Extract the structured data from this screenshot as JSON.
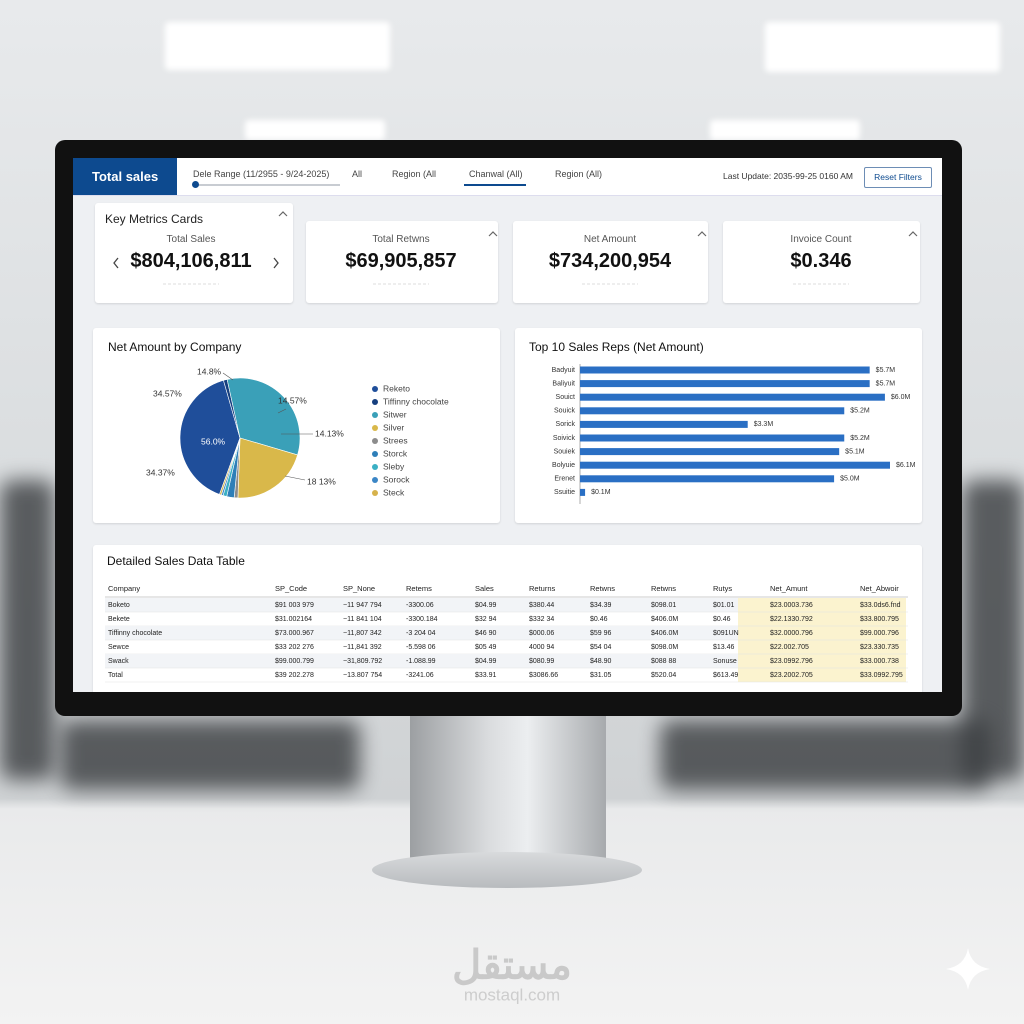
{
  "header": {
    "title": "Total sales",
    "filters": [
      "Dele Range (11/2955 - 9/24-2025)",
      "All",
      "Region (All",
      "Chanwal (All)",
      "Region (All)"
    ],
    "last_update": "Last Update: 2035-99-25 0160 AM",
    "reset_button": "Reset Filters"
  },
  "metrics": {
    "title": "Key Metrics Cards",
    "cards": [
      {
        "label": "Total Sales",
        "value": "$804,106,811"
      },
      {
        "label": "Total Retwns",
        "value": "$69,905,857"
      },
      {
        "label": "Net Amount",
        "value": "$734,200,954"
      },
      {
        "label": "Invoice Count",
        "value": "$0.346"
      }
    ]
  },
  "chart_data": [
    {
      "type": "pie",
      "title": "Net Amount by Company",
      "categories": [
        "Reketo",
        "Tiffinny chocolate",
        "Sitwer",
        "Silver",
        "Strees",
        "Storck",
        "Sleby",
        "Sorock",
        "Steck"
      ],
      "values": [
        40,
        1,
        33,
        21,
        1,
        2,
        1,
        0.5,
        0.5
      ],
      "colors": [
        "#1f4e9a",
        "#163f7f",
        "#3aa0b8",
        "#d9b84a",
        "#8c8c8c",
        "#2e7fb8",
        "#3bb0c4",
        "#3b86c6",
        "#d6b24c"
      ],
      "annotations": [
        "14.8%",
        "14.57%",
        "14.13%",
        "18 13%",
        "34.57%",
        "34.37%",
        "56.0%"
      ]
    },
    {
      "type": "bar",
      "orientation": "horizontal",
      "title": "Top 10 Sales Reps (Net Amount)",
      "categories": [
        "Badyuit",
        "Baliyuit",
        "Souict",
        "Souick",
        "Sorick",
        "Soivick",
        "Souiek",
        "Bolyuie",
        "Erenet",
        "Ssuitie"
      ],
      "values": [
        5.7,
        5.7,
        6.0,
        5.2,
        3.3,
        5.2,
        5.1,
        6.1,
        5.0,
        0.1
      ],
      "value_labels": [
        "$5.7M",
        "$5.7M",
        "$6.0M",
        "$5.2M",
        "$3.3M",
        "$5.2M",
        "$5.1M",
        "$6.1M",
        "$5.0M",
        "$0.1M"
      ],
      "color": "#2a6fc4"
    }
  ],
  "table": {
    "title": "Detailed Sales Data Table",
    "columns": [
      "Company",
      "SP_Code",
      "SP_None",
      "Retems",
      "Sales",
      "Returns",
      "Retwns",
      "Retwns",
      "Rutys",
      "Net_Amunt",
      "Net_Abwoir"
    ],
    "rows": [
      [
        "Boketo",
        "$91 003 979",
        "−11 947 794",
        "-3300.06",
        "$04.99",
        "$380.44",
        "$34.39",
        "$098.01",
        "$01.01",
        "$23.0003.736",
        "$33.0ds6.fnd"
      ],
      [
        "Bekete",
        "$31.002164",
        "−11 841 104",
        "-3300.184",
        "$32 94",
        "$332 34",
        "$0.46",
        "$406.0M",
        "$0.46",
        "$22.1330.792",
        "$33.800.795"
      ],
      [
        "Tiffinny chocolate",
        "$73.000.967",
        "−11,807 342",
        "-3 204 04",
        "$46 90",
        "$000.06",
        "$59 96",
        "$406.0M",
        "$091UN",
        "$32.0000.796",
        "$99.000.796"
      ],
      [
        "Sewce",
        "$33 202 276",
        "−11,841 392",
        "-5.598 06",
        "$05 49",
        "4000 94",
        "$54 04",
        "$098.0M",
        "$13.46",
        "$22.002.705",
        "$23.330.735"
      ],
      [
        "Swack",
        "$99.000.799",
        "−31,809.792",
        "-1.088.99",
        "$04.99",
        "$080.99",
        "$48.90",
        "$088 88",
        "Sonuse",
        "$23.0992.796",
        "$33.000.738"
      ],
      [
        "Total",
        "$39 202.278",
        "−13.807 754",
        "-3241.06",
        "$33.91",
        "$3086.66",
        "$31.05",
        "$520.04",
        "$613.49",
        "$23.2002.705",
        "$33.0992.795"
      ]
    ]
  },
  "watermark": {
    "arabic": "مستقل",
    "latin": "mostaql.com"
  }
}
